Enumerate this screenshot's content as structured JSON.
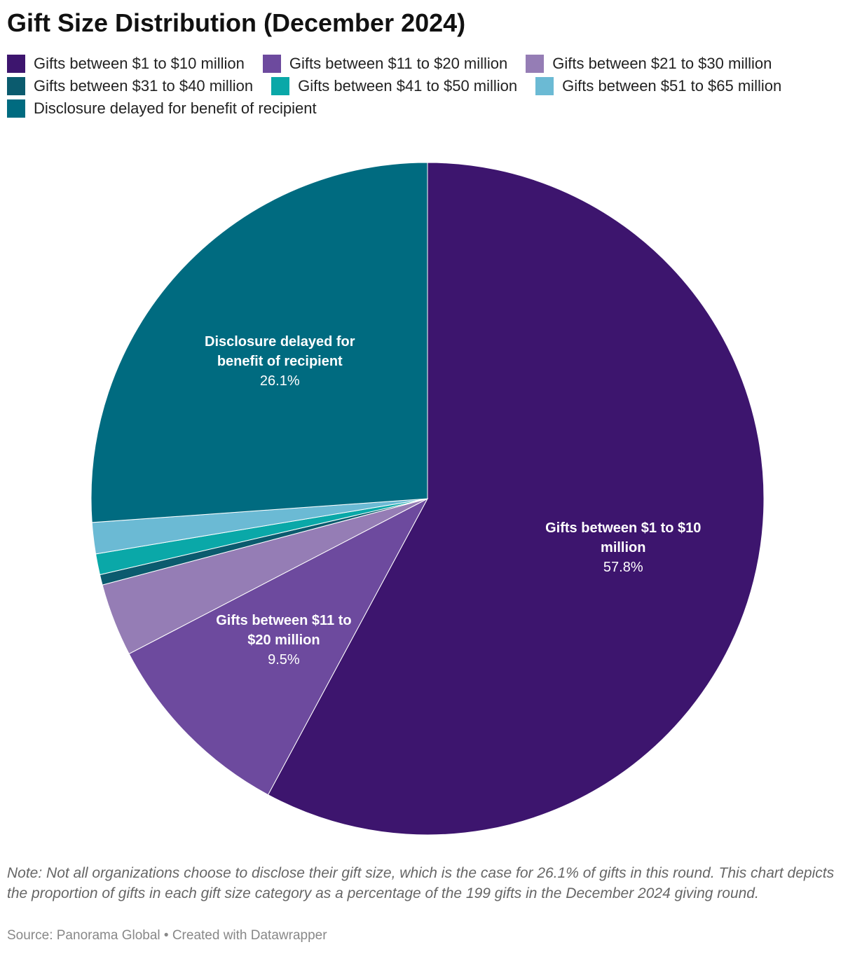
{
  "chart_data": {
    "type": "pie",
    "title": "Gift Size Distribution (December 2024)",
    "categories": [
      "Gifts between $1 to $10 million",
      "Gifts between $11 to $20 million",
      "Gifts between $21 to $30 million",
      "Gifts between $31 to $40 million",
      "Gifts between $41 to $50 million",
      "Gifts between $51 to $65 million",
      "Disclosure delayed for benefit of recipient"
    ],
    "values": [
      57.8,
      9.5,
      3.5,
      0.5,
      1.0,
      1.5,
      26.1
    ],
    "value_labels": [
      "57.8%",
      "9.5%",
      null,
      null,
      null,
      null,
      "26.1%"
    ],
    "colors": [
      "#3d156e",
      "#6d4a9e",
      "#957db5",
      "#0b5b6e",
      "#0aa8a8",
      "#6bbad4",
      "#006b80"
    ],
    "note": "Note: Not all organizations choose to disclose their gift size, which is the case for 26.1% of gifts in this round. This chart depicts the proportion of gifts in each gift size category as a percentage of the 199 gifts in the December 2024 giving round.",
    "source": "Source: Panorama Global • Created with Datawrapper"
  }
}
